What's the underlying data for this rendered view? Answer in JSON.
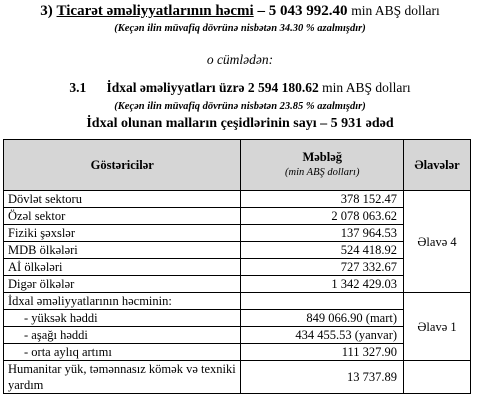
{
  "section": {
    "number": "3)",
    "title": "Ticarət əməliyyatlarının həcmi",
    "dash": "–",
    "amount": "5 043 992.40",
    "unit": "min ABŞ dolları",
    "note": "(Keçən ilin müvafiq dövrünə nisbətən 34.30 % azalmışdır)"
  },
  "subtitle": "o cümlədən:",
  "import": {
    "number": "3.1",
    "label": "İdxal əməliyyatları üzrə",
    "amount": "2 594 180.62",
    "unit": "min ABŞ dolları",
    "note": "(Keçən ilin müvafiq dövrünə nisbətən 23.85 % azalmışdır)",
    "kinds": "İdxal olunan malların çeşidlərinin sayı – 5 931 ədəd"
  },
  "table": {
    "headers": {
      "indicators": "Göstəricilər",
      "amount": "Məbləğ",
      "amount_unit": "(min ABŞ dolları)",
      "appendix": "Əlavələr"
    },
    "rows": [
      {
        "name": "Dövlət sektoru",
        "value": "378 152.47"
      },
      {
        "name": "Özəl sektor",
        "value": "2 078 063.62"
      },
      {
        "name": "Fiziki şəxslər",
        "value": "137 964.53"
      },
      {
        "name": "MDB ölkələri",
        "value": "524 418.92"
      },
      {
        "name": "Aİ ölkələri",
        "value": "727 332.67"
      },
      {
        "name": "Digər ölkələr",
        "value": "1 342 429.03"
      },
      {
        "name": "İdxal əməliyyatlarının həcminin:",
        "value": ""
      },
      {
        "name": "- yüksək həddi",
        "value": "849 066.90 (mart)"
      },
      {
        "name": "- aşağı həddi",
        "value": "434 455.53 (yanvar)"
      },
      {
        "name": "- orta aylıq artımı",
        "value": "111 327.90"
      },
      {
        "name": "Humanitar yük, təmənnasız kömək və texniki yardım",
        "value": "13 737.89"
      }
    ],
    "appendix_4": "Əlavə 4",
    "appendix_1": "Əlavə 1"
  }
}
